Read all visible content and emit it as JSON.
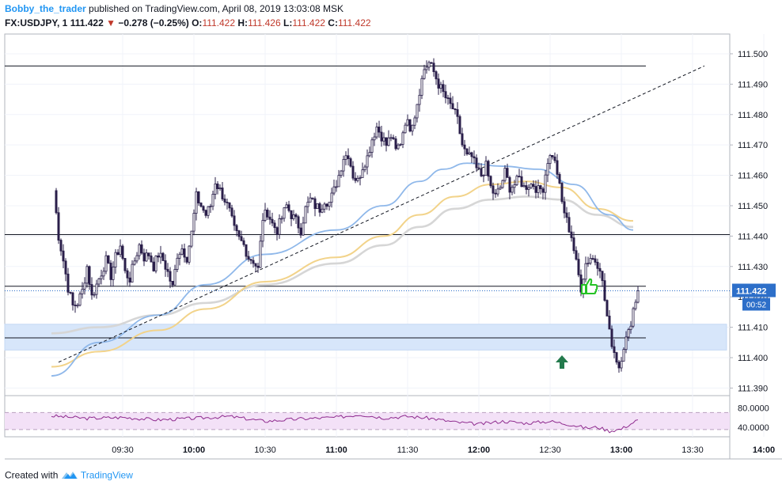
{
  "header": {
    "author": "Bobby_the_trader",
    "published": "published on TradingView.com, April 08, 2019 13:03:08 MSK",
    "symbol": "FX:USDJPY, 1",
    "last": "111.422",
    "change": "−0.278 (−0.25%)",
    "o_label": "O:",
    "o": "111.422",
    "h_label": "H:",
    "h": "111.426",
    "l_label": "L:",
    "l": "111.422",
    "c_label": "C:",
    "c": "111.422"
  },
  "footer": {
    "created": "Created with",
    "brand": "TradingView"
  },
  "colors": {
    "bull": "#ffffff",
    "bear": "#2a1f4a",
    "wick": "#2a1f4a",
    "ma_fast": "#8fb8ea",
    "ma_mid": "#f2d38a",
    "ma_slow": "#d6d6d6",
    "zone": "#d7e6fa",
    "rsi": "#8e2a8e",
    "rsi_band": "#f3e1f7",
    "price_tag": "#2d6fc9",
    "thumb": "#25c225",
    "arrow": "#237a4c"
  },
  "icons": {
    "thumb": "thumbs-up-icon",
    "arrow": "up-arrow-icon"
  },
  "chart_data": {
    "type": "candlestick",
    "x_ticks": [
      "09:30",
      "10:00",
      "10:30",
      "11:00",
      "11:30",
      "12:00",
      "12:30",
      "13:00",
      "13:30",
      "14:00"
    ],
    "y_ticks": [
      "111.500",
      "111.490",
      "111.480",
      "111.470",
      "111.460",
      "111.450",
      "111.440",
      "111.430",
      "111.420",
      "111.410",
      "111.400",
      "111.390"
    ],
    "price_range": [
      111.3875,
      111.5065
    ],
    "last_price_label": "111.422",
    "countdown_label": "00:52",
    "rsi_ticks": [
      "80.0000",
      "40.0000"
    ],
    "rsi_range": [
      20,
      100
    ],
    "horizontal_levels": [
      111.496,
      111.4405,
      111.4235,
      111.4065
    ],
    "support_zone": [
      111.4025,
      111.411
    ],
    "trendline": {
      "from": [
        "09:03",
        111.3985
      ],
      "to": [
        "13:35",
        111.496
      ]
    },
    "candle_anchors": [
      [
        "09:01",
        111.455
      ],
      [
        "09:03",
        111.44
      ],
      [
        "09:05",
        111.432
      ],
      [
        "09:07",
        111.423
      ],
      [
        "09:09",
        111.417
      ],
      [
        "09:11",
        111.418
      ],
      [
        "09:13",
        111.422
      ],
      [
        "09:15",
        111.43
      ],
      [
        "09:17",
        111.42
      ],
      [
        "09:19",
        111.424
      ],
      [
        "09:21",
        111.428
      ],
      [
        "09:23",
        111.432
      ],
      [
        "09:25",
        111.427
      ],
      [
        "09:27",
        111.433
      ],
      [
        "09:29",
        111.437
      ],
      [
        "09:31",
        111.428
      ],
      [
        "09:33",
        111.426
      ],
      [
        "09:35",
        111.432
      ],
      [
        "09:37",
        111.437
      ],
      [
        "09:39",
        111.433
      ],
      [
        "09:41",
        111.434
      ],
      [
        "09:43",
        111.43
      ],
      [
        "09:45",
        111.434
      ],
      [
        "09:47",
        111.432
      ],
      [
        "09:49",
        111.428
      ],
      [
        "09:51",
        111.423
      ],
      [
        "09:53",
        111.434
      ],
      [
        "09:55",
        111.436
      ],
      [
        "09:57",
        111.433
      ],
      [
        "09:59",
        111.441
      ],
      [
        "10:01",
        111.453
      ],
      [
        "10:03",
        111.45
      ],
      [
        "10:05",
        111.447
      ],
      [
        "10:07",
        111.45
      ],
      [
        "10:09",
        111.458
      ],
      [
        "10:11",
        111.455
      ],
      [
        "10:13",
        111.452
      ],
      [
        "10:15",
        111.448
      ],
      [
        "10:17",
        111.442
      ],
      [
        "10:19",
        111.439
      ],
      [
        "10:21",
        111.437
      ],
      [
        "10:23",
        111.433
      ],
      [
        "10:25",
        111.432
      ],
      [
        "10:27",
        111.429
      ],
      [
        "10:29",
        111.446
      ],
      [
        "10:31",
        111.448
      ],
      [
        "10:33",
        111.444
      ],
      [
        "10:35",
        111.442
      ],
      [
        "10:37",
        111.446
      ],
      [
        "10:39",
        111.45
      ],
      [
        "10:41",
        111.447
      ],
      [
        "10:43",
        111.445
      ],
      [
        "10:45",
        111.442
      ],
      [
        "10:47",
        111.449
      ],
      [
        "10:49",
        111.452
      ],
      [
        "10:51",
        111.45
      ],
      [
        "10:53",
        111.449
      ],
      [
        "10:55",
        111.452
      ],
      [
        "10:57",
        111.451
      ],
      [
        "10:59",
        111.455
      ],
      [
        "11:01",
        111.46
      ],
      [
        "11:03",
        111.466
      ],
      [
        "11:05",
        111.467
      ],
      [
        "11:07",
        111.46
      ],
      [
        "11:09",
        111.458
      ],
      [
        "11:11",
        111.463
      ],
      [
        "11:13",
        111.466
      ],
      [
        "11:15",
        111.472
      ],
      [
        "11:17",
        111.476
      ],
      [
        "11:19",
        111.473
      ],
      [
        "11:21",
        111.47
      ],
      [
        "11:23",
        111.473
      ],
      [
        "11:25",
        111.468
      ],
      [
        "11:27",
        111.471
      ],
      [
        "11:29",
        111.478
      ],
      [
        "11:31",
        111.476
      ],
      [
        "11:33",
        111.48
      ],
      [
        "11:35",
        111.488
      ],
      [
        "11:37",
        111.495
      ],
      [
        "11:39",
        111.497
      ],
      [
        "11:41",
        111.494
      ],
      [
        "11:43",
        111.49
      ],
      [
        "11:45",
        111.487
      ],
      [
        "11:47",
        111.484
      ],
      [
        "11:49",
        111.482
      ],
      [
        "11:51",
        111.478
      ],
      [
        "11:53",
        111.47
      ],
      [
        "11:55",
        111.466
      ],
      [
        "11:57",
        111.466
      ],
      [
        "11:59",
        111.462
      ],
      [
        "12:01",
        111.46
      ],
      [
        "12:03",
        111.463
      ],
      [
        "12:05",
        111.456
      ],
      [
        "12:07",
        111.453
      ],
      [
        "12:09",
        111.456
      ],
      [
        "12:11",
        111.461
      ],
      [
        "12:13",
        111.456
      ],
      [
        "12:15",
        111.457
      ],
      [
        "12:17",
        111.459
      ],
      [
        "12:19",
        111.456
      ],
      [
        "12:21",
        111.457
      ],
      [
        "12:23",
        111.457
      ],
      [
        "12:25",
        111.455
      ],
      [
        "12:27",
        111.456
      ],
      [
        "12:29",
        111.465
      ],
      [
        "12:31",
        111.467
      ],
      [
        "12:33",
        111.461
      ],
      [
        "12:35",
        111.451
      ],
      [
        "12:37",
        111.445
      ],
      [
        "12:39",
        111.44
      ],
      [
        "12:41",
        111.431
      ],
      [
        "12:43",
        111.423
      ],
      [
        "12:45",
        111.431
      ],
      [
        "12:47",
        111.433
      ],
      [
        "12:49",
        111.432
      ],
      [
        "12:51",
        111.43
      ],
      [
        "12:53",
        111.419
      ],
      [
        "12:55",
        111.408
      ],
      [
        "12:57",
        111.402
      ],
      [
        "12:59",
        111.397
      ],
      [
        "13:01",
        111.404
      ],
      [
        "13:03",
        111.408
      ],
      [
        "13:05",
        111.416
      ],
      [
        "13:07",
        111.422
      ]
    ],
    "ma_fast_anchors": [
      [
        "09:00",
        111.394
      ],
      [
        "09:20",
        111.405
      ],
      [
        "09:45",
        111.414
      ],
      [
        "10:05",
        111.424
      ],
      [
        "10:30",
        111.434
      ],
      [
        "11:00",
        111.442
      ],
      [
        "11:20",
        111.45
      ],
      [
        "11:35",
        111.458
      ],
      [
        "11:45",
        111.462
      ],
      [
        "11:55",
        111.464
      ],
      [
        "12:10",
        111.463
      ],
      [
        "12:25",
        111.462
      ],
      [
        "12:40",
        111.457
      ],
      [
        "12:55",
        111.447
      ],
      [
        "13:05",
        111.442
      ]
    ],
    "ma_mid_anchors": [
      [
        "09:00",
        111.397
      ],
      [
        "09:20",
        111.402
      ],
      [
        "09:45",
        111.409
      ],
      [
        "10:05",
        111.416
      ],
      [
        "10:30",
        111.425
      ],
      [
        "11:00",
        111.433
      ],
      [
        "11:20",
        111.44
      ],
      [
        "11:35",
        111.447
      ],
      [
        "11:50",
        111.453
      ],
      [
        "12:05",
        111.457
      ],
      [
        "12:20",
        111.458
      ],
      [
        "12:35",
        111.456
      ],
      [
        "12:50",
        111.449
      ],
      [
        "13:05",
        111.445
      ]
    ],
    "ma_slow_anchors": [
      [
        "09:00",
        111.408
      ],
      [
        "09:20",
        111.41
      ],
      [
        "09:45",
        111.414
      ],
      [
        "10:05",
        111.418
      ],
      [
        "10:30",
        111.424
      ],
      [
        "11:00",
        111.431
      ],
      [
        "11:20",
        111.437
      ],
      [
        "11:35",
        111.443
      ],
      [
        "11:50",
        111.449
      ],
      [
        "12:05",
        111.452
      ],
      [
        "12:20",
        111.453
      ],
      [
        "12:35",
        111.452
      ],
      [
        "12:50",
        111.447
      ],
      [
        "13:05",
        111.443
      ]
    ],
    "rsi_anchors": [
      [
        "09:00",
        63
      ],
      [
        "09:15",
        58
      ],
      [
        "09:30",
        60
      ],
      [
        "09:45",
        55
      ],
      [
        "10:00",
        58
      ],
      [
        "10:15",
        62
      ],
      [
        "10:30",
        52
      ],
      [
        "10:45",
        57
      ],
      [
        "11:00",
        60
      ],
      [
        "11:10",
        66
      ],
      [
        "11:20",
        59
      ],
      [
        "11:30",
        62
      ],
      [
        "11:40",
        58
      ],
      [
        "11:50",
        50
      ],
      [
        "12:00",
        46
      ],
      [
        "12:10",
        52
      ],
      [
        "12:20",
        48
      ],
      [
        "12:30",
        52
      ],
      [
        "12:40",
        44
      ],
      [
        "12:45",
        38
      ],
      [
        "12:50",
        40
      ],
      [
        "12:55",
        32
      ],
      [
        "13:00",
        36
      ],
      [
        "13:03",
        44
      ],
      [
        "13:07",
        55
      ]
    ],
    "rsi_levels": [
      70,
      35
    ]
  }
}
